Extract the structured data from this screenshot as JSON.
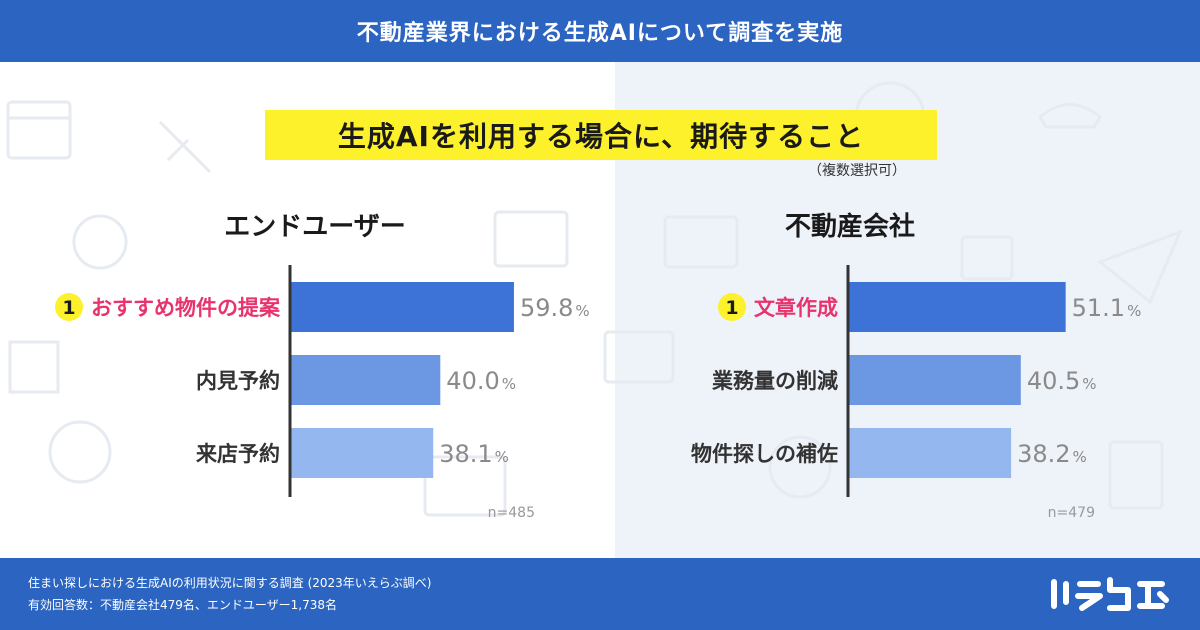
{
  "header": {
    "title": "不動産業界における生成AIについて調査を実施"
  },
  "subtitle": "生成AIを利用する場合に、期待すること",
  "note": "（複数選択可）",
  "colors": {
    "header_bg": "#2b64c1",
    "highlight_yellow": "#fcf12b",
    "rank_pink": "#e8336c",
    "bar_1": "#3d73d6",
    "bar_2": "#6b97e3",
    "bar_3": "#93b7ee"
  },
  "chart_data": [
    {
      "type": "bar",
      "orientation": "horizontal",
      "title": "エンドユーザー",
      "categories": [
        "おすすめ物件の提案",
        "内見予約",
        "来店予約"
      ],
      "values": [
        59.8,
        40.0,
        38.1
      ],
      "value_labels": [
        "59.8",
        "40.0",
        "38.1"
      ],
      "unit": "%",
      "rank_badge": "1",
      "n_label": "n=485"
    },
    {
      "type": "bar",
      "orientation": "horizontal",
      "title": "不動産会社",
      "categories": [
        "文章作成",
        "業務量の削減",
        "物件探しの補佐"
      ],
      "values": [
        51.1,
        40.5,
        38.2
      ],
      "value_labels": [
        "51.1",
        "40.5",
        "38.2"
      ],
      "unit": "%",
      "rank_badge": "1",
      "n_label": "n=479"
    }
  ],
  "footer": {
    "line1": "住まい探しにおける生成AIの利用状況に関する調査 (2023年いえらぶ調べ)",
    "line2": "有効回答数：不動産会社479名、エンドユーザー1,738名"
  },
  "logo": {
    "text": "いえらぶ"
  }
}
